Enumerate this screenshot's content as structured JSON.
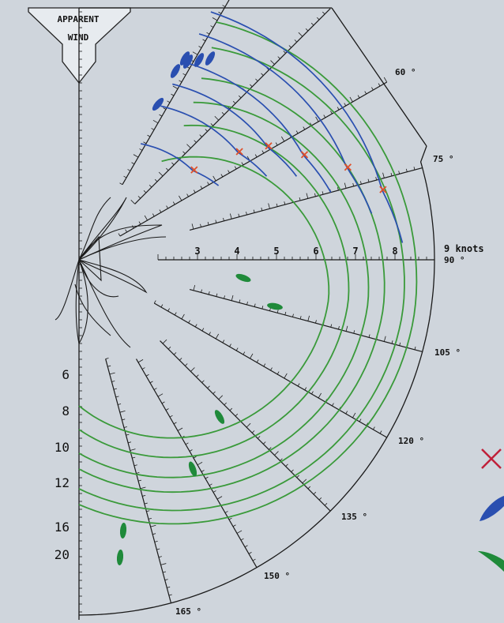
{
  "chart_data": {
    "type": "polar",
    "axis_title": "APPARENT WIND",
    "speed_unit_label": "9 knots",
    "speed_ticks": [
      "3",
      "4",
      "5",
      "6",
      "7",
      "8"
    ],
    "angle_labels": [
      "60 °",
      "75 °",
      "90 °",
      "105 °",
      "120 °",
      "135 °",
      "150 °",
      "165 °"
    ],
    "angle_ticks_deg": [
      60,
      75,
      90,
      105,
      120,
      135,
      150,
      165
    ],
    "speed_range": [
      0,
      9
    ],
    "true_wind_speed_labels": [
      "6",
      "8",
      "10",
      "12",
      "16",
      "20"
    ],
    "series": [
      {
        "true_wind": 6,
        "start_speed": 3.7,
        "peak": {
          "angle": 52,
          "speed": 3.7
        },
        "end_speed": 6.4
      },
      {
        "true_wind": 8,
        "start_speed": 4.3,
        "peak": {
          "angle": 56,
          "speed": 4.9
        },
        "end_speed": 6.9
      },
      {
        "true_wind": 10,
        "start_speed": 4.9,
        "peak": {
          "angle": 59,
          "speed": 5.6
        },
        "end_speed": 7.4
      },
      {
        "true_wind": 12,
        "start_speed": 5.3,
        "peak": {
          "angle": 65,
          "speed": 6.3
        },
        "end_speed": 7.8
      },
      {
        "true_wind": 16,
        "start_speed": 5.8,
        "peak": {
          "angle": 71,
          "speed": 7.2
        },
        "end_speed": 8.3
      },
      {
        "true_wind": 20,
        "start_speed": 6.2,
        "peak": {
          "angle": 77,
          "speed": 7.9
        },
        "end_speed": 8.6
      }
    ],
    "legend_symbols": [
      "cross-marker",
      "blue-sail-marker",
      "green-sail-marker"
    ],
    "colors": {
      "curves": "#3a9a3a",
      "upwind": "#2a4fb0",
      "cross": "#e0502a",
      "legend_cross": "#c0203a",
      "grid": "#1a1a1a"
    }
  }
}
